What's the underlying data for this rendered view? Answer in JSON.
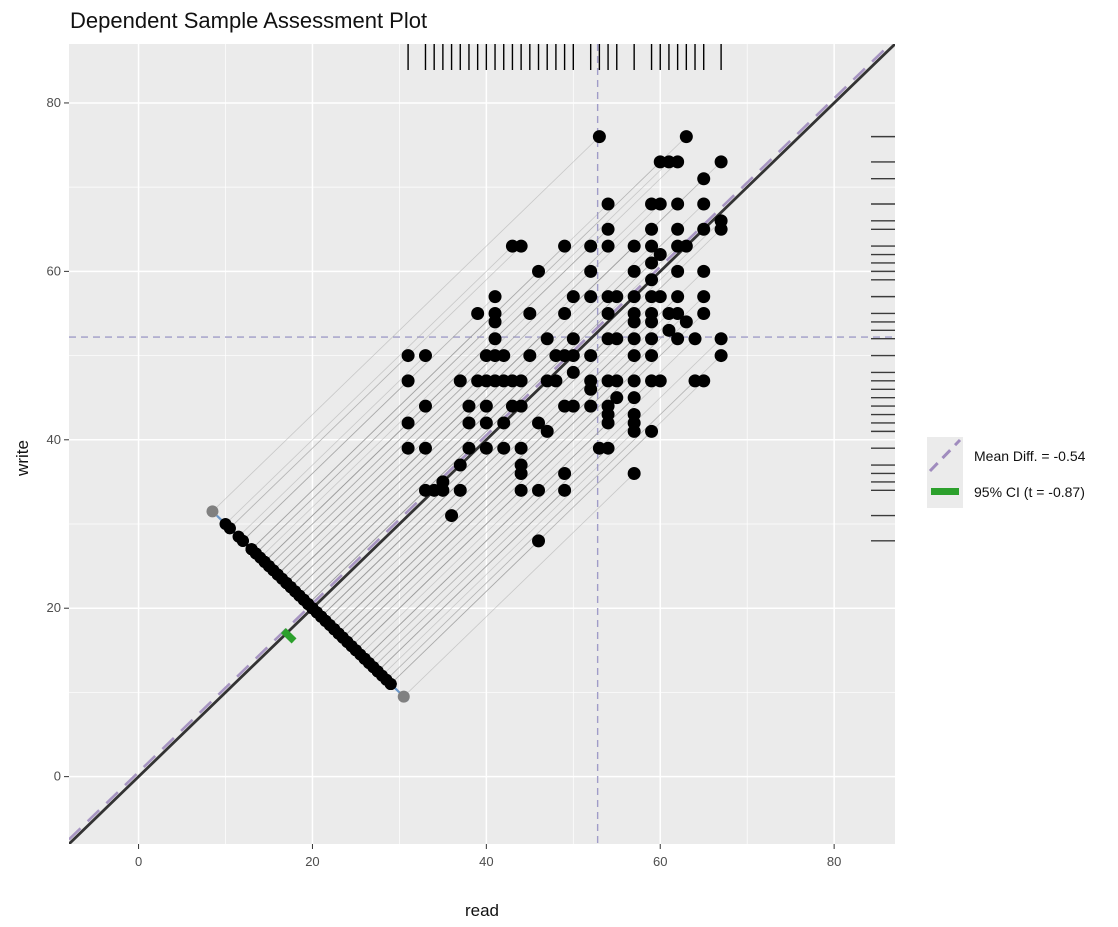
{
  "chart_data": {
    "type": "scatter",
    "title": "Dependent Sample Assessment Plot",
    "xlabel": "read",
    "ylabel": "write",
    "xlim": [
      -8,
      87
    ],
    "ylim": [
      -8,
      87
    ],
    "x_ticks": [
      0,
      20,
      40,
      60,
      80
    ],
    "y_ticks": [
      0,
      20,
      40,
      60,
      80
    ],
    "grid": true,
    "legend_position": "right",
    "mean_read": 52.8,
    "mean_write": 52.2,
    "mean_difference": -0.54,
    "ci_95": [
      -1.77,
      0.69
    ],
    "t_statistic": -0.87,
    "legend": [
      {
        "label": "Mean Diff. = -0.54",
        "kind": "dashed-line"
      },
      {
        "label": "95% CI (t = -0.87)",
        "kind": "bar"
      }
    ],
    "colors": {
      "panel": "#ebebeb",
      "grid": "#ffffff",
      "points": "#000000",
      "identity_line": "#333333",
      "mean_diff_line": "#a08cbe",
      "mean_guides": "#a09cc8",
      "difference_axis": "#6b97c9",
      "ci_bar": "#2ca02c",
      "projection_lines": "#9e9e9e"
    },
    "points": [
      [
        31,
        50
      ],
      [
        33,
        50
      ],
      [
        31,
        47
      ],
      [
        31,
        42
      ],
      [
        31,
        39
      ],
      [
        33,
        39
      ],
      [
        33,
        44
      ],
      [
        33,
        34
      ],
      [
        34,
        34
      ],
      [
        35,
        34
      ],
      [
        35,
        35
      ],
      [
        36,
        31
      ],
      [
        37,
        34
      ],
      [
        37,
        37
      ],
      [
        38,
        39
      ],
      [
        38,
        42
      ],
      [
        38,
        44
      ],
      [
        37,
        47
      ],
      [
        39,
        47
      ],
      [
        39,
        55
      ],
      [
        40,
        47
      ],
      [
        41,
        47
      ],
      [
        42,
        47
      ],
      [
        43,
        47
      ],
      [
        40,
        50
      ],
      [
        41,
        50
      ],
      [
        42,
        50
      ],
      [
        41,
        52
      ],
      [
        41,
        54
      ],
      [
        41,
        55
      ],
      [
        41,
        57
      ],
      [
        40,
        39
      ],
      [
        42,
        39
      ],
      [
        40,
        42
      ],
      [
        42,
        42
      ],
      [
        40,
        44
      ],
      [
        43,
        44
      ],
      [
        44,
        44
      ],
      [
        43,
        63
      ],
      [
        44,
        63
      ],
      [
        44,
        47
      ],
      [
        44,
        39
      ],
      [
        44,
        37
      ],
      [
        44,
        36
      ],
      [
        44,
        34
      ],
      [
        45,
        50
      ],
      [
        45,
        55
      ],
      [
        46,
        60
      ],
      [
        46,
        42
      ],
      [
        46,
        34
      ],
      [
        46,
        28
      ],
      [
        47,
        41
      ],
      [
        47,
        47
      ],
      [
        47,
        52
      ],
      [
        48,
        47
      ],
      [
        48,
        50
      ],
      [
        49,
        50
      ],
      [
        49,
        55
      ],
      [
        49,
        63
      ],
      [
        49,
        36
      ],
      [
        49,
        34
      ],
      [
        49,
        44
      ],
      [
        50,
        44
      ],
      [
        50,
        57
      ],
      [
        50,
        50
      ],
      [
        50,
        48
      ],
      [
        50,
        52
      ],
      [
        52,
        63
      ],
      [
        52,
        57
      ],
      [
        52,
        50
      ],
      [
        52,
        47
      ],
      [
        52,
        46
      ],
      [
        52,
        44
      ],
      [
        52,
        60
      ],
      [
        53,
        76
      ],
      [
        53,
        39
      ],
      [
        54,
        39
      ],
      [
        54,
        42
      ],
      [
        54,
        44
      ],
      [
        54,
        43
      ],
      [
        54,
        47
      ],
      [
        54,
        52
      ],
      [
        55,
        52
      ],
      [
        54,
        55
      ],
      [
        54,
        57
      ],
      [
        54,
        63
      ],
      [
        54,
        65
      ],
      [
        54,
        68
      ],
      [
        55,
        57
      ],
      [
        55,
        45
      ],
      [
        55,
        47
      ],
      [
        57,
        36
      ],
      [
        57,
        41
      ],
      [
        57,
        42
      ],
      [
        57,
        43
      ],
      [
        57,
        45
      ],
      [
        57,
        47
      ],
      [
        57,
        50
      ],
      [
        57,
        52
      ],
      [
        57,
        54
      ],
      [
        57,
        55
      ],
      [
        57,
        57
      ],
      [
        57,
        60
      ],
      [
        57,
        63
      ],
      [
        59,
        41
      ],
      [
        59,
        47
      ],
      [
        59,
        50
      ],
      [
        59,
        52
      ],
      [
        59,
        54
      ],
      [
        59,
        55
      ],
      [
        59,
        57
      ],
      [
        59,
        59
      ],
      [
        59,
        61
      ],
      [
        59,
        63
      ],
      [
        59,
        65
      ],
      [
        59,
        68
      ],
      [
        60,
        68
      ],
      [
        60,
        73
      ],
      [
        61,
        73
      ],
      [
        62,
        73
      ],
      [
        60,
        47
      ],
      [
        60,
        57
      ],
      [
        60,
        62
      ],
      [
        61,
        55
      ],
      [
        61,
        53
      ],
      [
        62,
        55
      ],
      [
        62,
        52
      ],
      [
        62,
        57
      ],
      [
        62,
        60
      ],
      [
        62,
        63
      ],
      [
        62,
        65
      ],
      [
        62,
        68
      ],
      [
        63,
        54
      ],
      [
        63,
        63
      ],
      [
        63,
        76
      ],
      [
        64,
        52
      ],
      [
        64,
        47
      ],
      [
        65,
        47
      ],
      [
        65,
        55
      ],
      [
        65,
        57
      ],
      [
        65,
        60
      ],
      [
        65,
        65
      ],
      [
        65,
        68
      ],
      [
        65,
        71
      ],
      [
        67,
        52
      ],
      [
        67,
        50
      ],
      [
        67,
        65
      ],
      [
        67,
        66
      ],
      [
        67,
        73
      ]
    ]
  }
}
